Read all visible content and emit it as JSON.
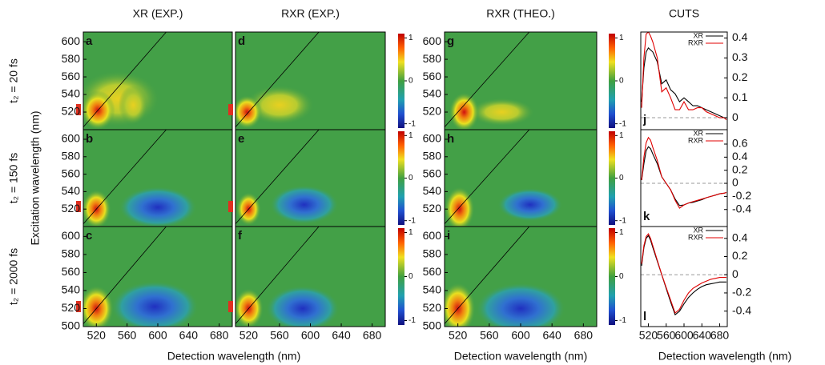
{
  "chart_data": [
    {
      "type": "heatmap",
      "label": "a",
      "title": "XR (EXP.)",
      "row_label": "t₂ = 20 fs",
      "xlim": [
        503,
        697
      ],
      "ylim": [
        500,
        611
      ],
      "yticks": [
        520,
        540,
        560,
        580,
        600
      ]
    },
    {
      "type": "heatmap",
      "label": "b",
      "row_label": "t₂ = 150 fs",
      "ylabel": "Excitation wavelength (nm)",
      "xlim": [
        503,
        697
      ],
      "ylim": [
        500,
        611
      ],
      "yticks": [
        520,
        540,
        560,
        580,
        600
      ]
    },
    {
      "type": "heatmap",
      "label": "c",
      "row_label": "t₂ = 2000 fs",
      "xlabel": "Detection wavelength (nm)",
      "xlim": [
        503,
        697
      ],
      "ylim": [
        500,
        611
      ],
      "xticks": [
        520,
        560,
        600,
        640,
        680
      ],
      "yticks": [
        500,
        520,
        540,
        560,
        580,
        600
      ]
    },
    {
      "type": "heatmap",
      "label": "d",
      "title": "RXR (EXP.)",
      "xlim": [
        503,
        697
      ],
      "ylim": [
        500,
        611
      ],
      "clim": [
        -1.1,
        1.1
      ],
      "cticks": [
        1,
        0,
        -1
      ]
    },
    {
      "type": "heatmap",
      "label": "e",
      "xlim": [
        503,
        697
      ],
      "ylim": [
        500,
        611
      ],
      "clim": [
        -1.1,
        1.1
      ],
      "cticks": [
        1,
        0,
        -1
      ]
    },
    {
      "type": "heatmap",
      "label": "f",
      "xlim": [
        503,
        697
      ],
      "ylim": [
        500,
        611
      ],
      "xticks": [
        520,
        560,
        600,
        640,
        680
      ],
      "clim": [
        -1.1,
        1.1
      ],
      "cticks": [
        1,
        0,
        -1
      ]
    },
    {
      "type": "heatmap",
      "label": "g",
      "title": "RXR (THEO.)",
      "xlim": [
        503,
        697
      ],
      "ylim": [
        500,
        611
      ],
      "yticks": [
        520,
        540,
        560,
        580,
        600
      ],
      "clim": [
        -1.1,
        1.1
      ],
      "cticks": [
        1,
        0,
        -1
      ]
    },
    {
      "type": "heatmap",
      "label": "h",
      "xlim": [
        503,
        697
      ],
      "ylim": [
        500,
        611
      ],
      "yticks": [
        520,
        540,
        560,
        580,
        600
      ],
      "clim": [
        -1.1,
        1.1
      ],
      "cticks": [
        1,
        0,
        -1
      ]
    },
    {
      "type": "heatmap",
      "label": "i",
      "xlabel": "Detection wavelength (nm)",
      "xlim": [
        503,
        697
      ],
      "ylim": [
        500,
        611
      ],
      "xticks": [
        520,
        560,
        600,
        640,
        680
      ],
      "yticks": [
        500,
        520,
        540,
        560,
        580,
        600
      ],
      "clim": [
        -1.1,
        1.1
      ],
      "cticks": [
        1,
        0,
        -1
      ]
    },
    {
      "type": "line",
      "label": "j",
      "title": "CUTS",
      "xlim": [
        503,
        697
      ],
      "ylim": [
        -0.06,
        0.43
      ],
      "yticks": [
        0,
        0.1,
        0.2,
        0.3,
        0.4
      ],
      "x": [
        505,
        510,
        515,
        520,
        525,
        530,
        540,
        550,
        560,
        570,
        580,
        590,
        600,
        610,
        620,
        630,
        640,
        650,
        660,
        670,
        680,
        690,
        695
      ],
      "series": [
        {
          "name": "XR",
          "color": "#000000",
          "values": [
            0.08,
            0.25,
            0.33,
            0.35,
            0.34,
            0.33,
            0.28,
            0.17,
            0.19,
            0.14,
            0.12,
            0.08,
            0.1,
            0.08,
            0.06,
            0.06,
            0.05,
            0.04,
            0.03,
            0.02,
            0.01,
            0.0,
            0.0
          ]
        },
        {
          "name": "RXR",
          "color": "#e00000",
          "values": [
            0.05,
            0.3,
            0.42,
            0.43,
            0.41,
            0.38,
            0.3,
            0.13,
            0.15,
            0.1,
            0.04,
            0.04,
            0.08,
            0.04,
            0.04,
            0.05,
            0.05,
            0.03,
            0.02,
            0.01,
            0.0,
            0.0,
            -0.01
          ]
        }
      ]
    },
    {
      "type": "line",
      "label": "k",
      "xlim": [
        503,
        697
      ],
      "ylim": [
        -0.66,
        0.82
      ],
      "yticks": [
        -0.4,
        -0.2,
        0,
        0.2,
        0.4,
        0.6
      ],
      "x": [
        505,
        510,
        515,
        520,
        525,
        530,
        540,
        550,
        560,
        570,
        580,
        590,
        600,
        610,
        620,
        630,
        640,
        650,
        660,
        670,
        680,
        690,
        695
      ],
      "series": [
        {
          "name": "XR",
          "color": "#000000",
          "values": [
            0.05,
            0.3,
            0.5,
            0.56,
            0.53,
            0.45,
            0.3,
            0.1,
            0.0,
            -0.1,
            -0.24,
            -0.34,
            -0.33,
            -0.3,
            -0.29,
            -0.27,
            -0.25,
            -0.22,
            -0.2,
            -0.18,
            -0.16,
            -0.15,
            -0.14
          ]
        },
        {
          "name": "RXR",
          "color": "#e00000",
          "values": [
            0.05,
            0.4,
            0.62,
            0.7,
            0.66,
            0.55,
            0.35,
            0.1,
            0.0,
            -0.1,
            -0.26,
            -0.38,
            -0.33,
            -0.3,
            -0.28,
            -0.26,
            -0.24,
            -0.22,
            -0.2,
            -0.18,
            -0.16,
            -0.15,
            -0.14
          ]
        }
      ]
    },
    {
      "type": "line",
      "label": "l",
      "xlabel": "Detection wavelength (nm)",
      "xlim": [
        503,
        697
      ],
      "ylim": [
        -0.57,
        0.53
      ],
      "xticks": [
        520,
        560,
        600,
        640,
        680
      ],
      "yticks": [
        -0.4,
        -0.2,
        0,
        0.2,
        0.4
      ],
      "x": [
        505,
        510,
        515,
        520,
        525,
        530,
        540,
        550,
        560,
        570,
        580,
        590,
        600,
        610,
        620,
        630,
        640,
        650,
        660,
        670,
        680,
        690,
        695
      ],
      "series": [
        {
          "name": "XR",
          "color": "#000000",
          "values": [
            0.1,
            0.3,
            0.4,
            0.43,
            0.38,
            0.3,
            0.15,
            0.0,
            -0.15,
            -0.3,
            -0.44,
            -0.4,
            -0.32,
            -0.25,
            -0.2,
            -0.16,
            -0.13,
            -0.11,
            -0.1,
            -0.09,
            -0.08,
            -0.08,
            -0.08
          ]
        },
        {
          "name": "RXR",
          "color": "#e00000",
          "values": [
            0.12,
            0.32,
            0.42,
            0.45,
            0.4,
            0.32,
            0.16,
            0.0,
            -0.14,
            -0.28,
            -0.42,
            -0.38,
            -0.28,
            -0.2,
            -0.15,
            -0.12,
            -0.09,
            -0.07,
            -0.05,
            -0.04,
            -0.03,
            -0.03,
            -0.03
          ]
        }
      ]
    }
  ]
}
